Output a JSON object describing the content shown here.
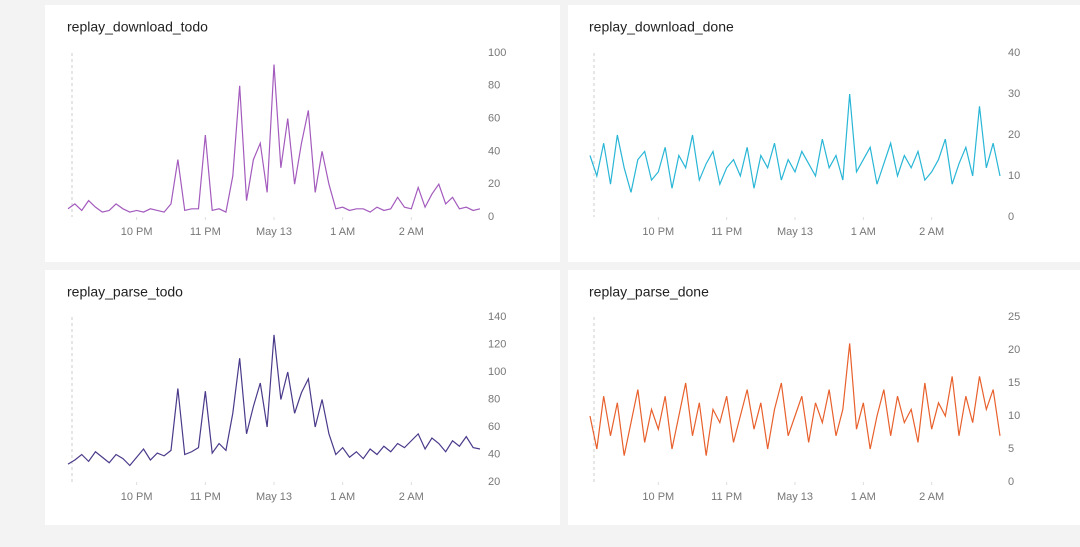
{
  "chart_data": [
    {
      "type": "line",
      "title": "replay_download_todo",
      "color": "#a35bbd",
      "x": [
        21,
        21.1,
        21.2,
        21.3,
        21.4,
        21.5,
        21.6,
        21.7,
        21.8,
        21.9,
        22,
        22.1,
        22.2,
        22.3,
        22.4,
        22.5,
        22.6,
        22.7,
        22.8,
        22.9,
        23,
        23.1,
        23.2,
        23.3,
        23.4,
        23.5,
        23.6,
        23.7,
        23.8,
        23.9,
        24,
        24.1,
        24.2,
        24.3,
        24.4,
        24.5,
        24.6,
        24.7,
        24.8,
        24.9,
        25,
        25.1,
        25.2,
        25.3,
        25.4,
        25.5,
        25.6,
        25.7,
        25.8,
        25.9,
        26,
        26.1,
        26.2,
        26.3,
        26.4,
        26.5,
        26.6,
        26.7,
        26.8,
        26.9,
        27
      ],
      "values": [
        5,
        8,
        4,
        10,
        6,
        3,
        4,
        8,
        5,
        3,
        4,
        3,
        5,
        4,
        3,
        8,
        35,
        4,
        5,
        5,
        50,
        4,
        5,
        3,
        25,
        80,
        10,
        35,
        45,
        15,
        93,
        30,
        60,
        20,
        45,
        65,
        15,
        40,
        20,
        5,
        6,
        4,
        5,
        5,
        3,
        6,
        4,
        5,
        12,
        6,
        5,
        18,
        6,
        14,
        20,
        8,
        12,
        5,
        6,
        4,
        5
      ],
      "xlim": [
        21,
        27
      ],
      "xticks": [
        {
          "value": 22,
          "label": "10 PM"
        },
        {
          "value": 23,
          "label": "11 PM"
        },
        {
          "value": 24,
          "label": "May 13"
        },
        {
          "value": 25,
          "label": "1 AM"
        },
        {
          "value": 26,
          "label": "2 AM"
        }
      ],
      "ylim": [
        0,
        100
      ],
      "yticks": [
        0,
        20,
        40,
        60,
        80,
        100
      ]
    },
    {
      "type": "line",
      "title": "replay_download_done",
      "color": "#29b6d6",
      "x": [
        21,
        21.1,
        21.2,
        21.3,
        21.4,
        21.5,
        21.6,
        21.7,
        21.8,
        21.9,
        22,
        22.1,
        22.2,
        22.3,
        22.4,
        22.5,
        22.6,
        22.7,
        22.8,
        22.9,
        23,
        23.1,
        23.2,
        23.3,
        23.4,
        23.5,
        23.6,
        23.7,
        23.8,
        23.9,
        24,
        24.1,
        24.2,
        24.3,
        24.4,
        24.5,
        24.6,
        24.7,
        24.8,
        24.9,
        25,
        25.1,
        25.2,
        25.3,
        25.4,
        25.5,
        25.6,
        25.7,
        25.8,
        25.9,
        26,
        26.1,
        26.2,
        26.3,
        26.4,
        26.5,
        26.6,
        26.7,
        26.8,
        26.9,
        27
      ],
      "values": [
        15,
        10,
        18,
        8,
        20,
        12,
        6,
        14,
        16,
        9,
        11,
        17,
        7,
        15,
        12,
        20,
        9,
        13,
        16,
        8,
        12,
        14,
        10,
        17,
        7,
        15,
        12,
        18,
        9,
        14,
        11,
        16,
        13,
        10,
        19,
        12,
        15,
        9,
        30,
        11,
        14,
        17,
        8,
        13,
        18,
        10,
        15,
        12,
        16,
        9,
        11,
        14,
        19,
        8,
        13,
        17,
        10,
        27,
        12,
        18,
        10
      ],
      "xlim": [
        21,
        27
      ],
      "xticks": [
        {
          "value": 22,
          "label": "10 PM"
        },
        {
          "value": 23,
          "label": "11 PM"
        },
        {
          "value": 24,
          "label": "May 13"
        },
        {
          "value": 25,
          "label": "1 AM"
        },
        {
          "value": 26,
          "label": "2 AM"
        }
      ],
      "ylim": [
        0,
        40
      ],
      "yticks": [
        0,
        10,
        20,
        30,
        40
      ]
    },
    {
      "type": "line",
      "title": "replay_parse_todo",
      "color": "#4b3a8a",
      "x": [
        21,
        21.1,
        21.2,
        21.3,
        21.4,
        21.5,
        21.6,
        21.7,
        21.8,
        21.9,
        22,
        22.1,
        22.2,
        22.3,
        22.4,
        22.5,
        22.6,
        22.7,
        22.8,
        22.9,
        23,
        23.1,
        23.2,
        23.3,
        23.4,
        23.5,
        23.6,
        23.7,
        23.8,
        23.9,
        24,
        24.1,
        24.2,
        24.3,
        24.4,
        24.5,
        24.6,
        24.7,
        24.8,
        24.9,
        25,
        25.1,
        25.2,
        25.3,
        25.4,
        25.5,
        25.6,
        25.7,
        25.8,
        25.9,
        26,
        26.1,
        26.2,
        26.3,
        26.4,
        26.5,
        26.6,
        26.7,
        26.8,
        26.9,
        27
      ],
      "values": [
        33,
        36,
        40,
        35,
        42,
        38,
        34,
        40,
        37,
        32,
        38,
        44,
        36,
        41,
        39,
        43,
        88,
        40,
        42,
        45,
        86,
        41,
        48,
        43,
        70,
        110,
        55,
        75,
        92,
        60,
        127,
        80,
        100,
        70,
        85,
        95,
        60,
        80,
        55,
        40,
        45,
        38,
        42,
        37,
        44,
        40,
        46,
        42,
        48,
        45,
        50,
        55,
        44,
        52,
        48,
        42,
        50,
        46,
        53,
        45,
        44
      ],
      "xlim": [
        21,
        27
      ],
      "xticks": [
        {
          "value": 22,
          "label": "10 PM"
        },
        {
          "value": 23,
          "label": "11 PM"
        },
        {
          "value": 24,
          "label": "May 13"
        },
        {
          "value": 25,
          "label": "1 AM"
        },
        {
          "value": 26,
          "label": "2 AM"
        }
      ],
      "ylim": [
        20,
        140
      ],
      "yticks": [
        20,
        40,
        60,
        80,
        100,
        120,
        140
      ]
    },
    {
      "type": "line",
      "title": "replay_parse_done",
      "color": "#e8602c",
      "x": [
        21,
        21.1,
        21.2,
        21.3,
        21.4,
        21.5,
        21.6,
        21.7,
        21.8,
        21.9,
        22,
        22.1,
        22.2,
        22.3,
        22.4,
        22.5,
        22.6,
        22.7,
        22.8,
        22.9,
        23,
        23.1,
        23.2,
        23.3,
        23.4,
        23.5,
        23.6,
        23.7,
        23.8,
        23.9,
        24,
        24.1,
        24.2,
        24.3,
        24.4,
        24.5,
        24.6,
        24.7,
        24.8,
        24.9,
        25,
        25.1,
        25.2,
        25.3,
        25.4,
        25.5,
        25.6,
        25.7,
        25.8,
        25.9,
        26,
        26.1,
        26.2,
        26.3,
        26.4,
        26.5,
        26.6,
        26.7,
        26.8,
        26.9,
        27
      ],
      "values": [
        10,
        5,
        13,
        7,
        12,
        4,
        9,
        14,
        6,
        11,
        8,
        13,
        5,
        10,
        15,
        7,
        12,
        4,
        11,
        9,
        13,
        6,
        10,
        14,
        8,
        12,
        5,
        11,
        15,
        7,
        10,
        13,
        6,
        12,
        9,
        14,
        7,
        11,
        21,
        8,
        12,
        5,
        10,
        14,
        7,
        13,
        9,
        11,
        6,
        15,
        8,
        12,
        10,
        16,
        7,
        13,
        9,
        16,
        11,
        14,
        7
      ],
      "xlim": [
        21,
        27
      ],
      "xticks": [
        {
          "value": 22,
          "label": "10 PM"
        },
        {
          "value": 23,
          "label": "11 PM"
        },
        {
          "value": 24,
          "label": "May 13"
        },
        {
          "value": 25,
          "label": "1 AM"
        },
        {
          "value": 26,
          "label": "2 AM"
        }
      ],
      "ylim": [
        0,
        25
      ],
      "yticks": [
        0,
        5,
        10,
        15,
        20,
        25
      ]
    }
  ]
}
